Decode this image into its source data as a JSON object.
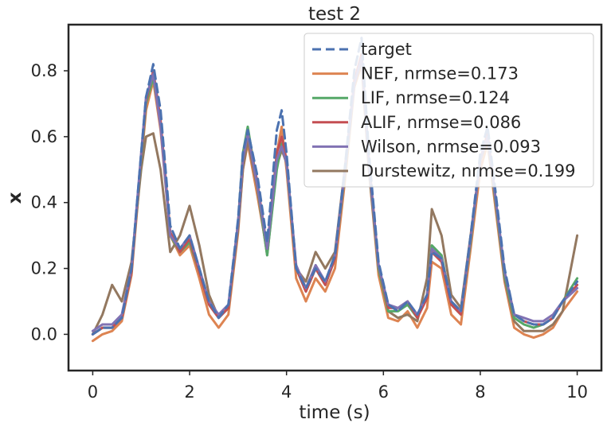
{
  "chart_data": {
    "type": "line",
    "title": "test 2",
    "xlabel": "time (s)",
    "ylabel": "x",
    "xlim": [
      -0.5,
      10.5
    ],
    "ylim": [
      -0.11,
      0.94
    ],
    "x_ticks": [
      0,
      2,
      4,
      6,
      8,
      10
    ],
    "y_ticks": [
      0.0,
      0.2,
      0.4,
      0.6,
      0.8
    ],
    "x_tick_labels": [
      "0",
      "2",
      "4",
      "6",
      "8",
      "10"
    ],
    "y_tick_labels": [
      "0.0",
      "0.2",
      "0.4",
      "0.6",
      "0.8"
    ],
    "grid": false,
    "legend_position": "top-right",
    "series": [
      {
        "name": "target",
        "color": "#4c72b0",
        "style": "dashed",
        "x": [
          0,
          0.2,
          0.4,
          0.6,
          0.8,
          1.0,
          1.1,
          1.25,
          1.4,
          1.6,
          1.8,
          2.0,
          2.2,
          2.4,
          2.6,
          2.8,
          3.0,
          3.1,
          3.2,
          3.4,
          3.6,
          3.8,
          3.9,
          4.0,
          4.2,
          4.4,
          4.6,
          4.8,
          5.0,
          5.2,
          5.4,
          5.55,
          5.7,
          5.9,
          6.1,
          6.3,
          6.5,
          6.7,
          6.9,
          7.0,
          7.2,
          7.4,
          7.6,
          7.8,
          8.0,
          8.15,
          8.3,
          8.5,
          8.7,
          8.9,
          9.1,
          9.3,
          9.5,
          9.7,
          10.0
        ],
        "values": [
          0.0,
          0.02,
          0.02,
          0.05,
          0.2,
          0.55,
          0.72,
          0.82,
          0.68,
          0.33,
          0.26,
          0.3,
          0.2,
          0.1,
          0.05,
          0.09,
          0.35,
          0.55,
          0.62,
          0.48,
          0.28,
          0.62,
          0.68,
          0.55,
          0.2,
          0.14,
          0.2,
          0.16,
          0.24,
          0.5,
          0.8,
          0.9,
          0.55,
          0.22,
          0.09,
          0.07,
          0.1,
          0.06,
          0.12,
          0.25,
          0.23,
          0.1,
          0.07,
          0.3,
          0.55,
          0.63,
          0.45,
          0.2,
          0.06,
          0.04,
          0.03,
          0.03,
          0.05,
          0.1,
          0.16
        ]
      },
      {
        "name": "NEF, nrmse=0.173",
        "color": "#dd8452",
        "style": "solid",
        "x": [
          0,
          0.2,
          0.4,
          0.6,
          0.8,
          1.0,
          1.1,
          1.25,
          1.4,
          1.6,
          1.8,
          2.0,
          2.2,
          2.4,
          2.6,
          2.8,
          3.0,
          3.1,
          3.2,
          3.4,
          3.6,
          3.8,
          3.9,
          4.0,
          4.2,
          4.4,
          4.6,
          4.8,
          5.0,
          5.2,
          5.4,
          5.55,
          5.7,
          5.9,
          6.1,
          6.3,
          6.5,
          6.7,
          6.9,
          7.0,
          7.2,
          7.4,
          7.6,
          7.8,
          8.0,
          8.15,
          8.3,
          8.5,
          8.7,
          8.9,
          9.1,
          9.3,
          9.5,
          9.7,
          10.0
        ],
        "values": [
          -0.02,
          0.0,
          0.01,
          0.04,
          0.18,
          0.52,
          0.68,
          0.77,
          0.62,
          0.3,
          0.24,
          0.27,
          0.17,
          0.06,
          0.02,
          0.06,
          0.31,
          0.5,
          0.58,
          0.42,
          0.25,
          0.55,
          0.63,
          0.5,
          0.17,
          0.1,
          0.17,
          0.13,
          0.2,
          0.46,
          0.75,
          0.82,
          0.5,
          0.18,
          0.05,
          0.04,
          0.07,
          0.02,
          0.08,
          0.22,
          0.2,
          0.06,
          0.03,
          0.26,
          0.5,
          0.58,
          0.4,
          0.16,
          0.02,
          0.0,
          -0.01,
          0.0,
          0.02,
          0.07,
          0.13
        ]
      },
      {
        "name": "LIF, nrmse=0.124",
        "color": "#55a868",
        "style": "solid",
        "x": [
          0,
          0.2,
          0.4,
          0.6,
          0.8,
          1.0,
          1.1,
          1.25,
          1.4,
          1.6,
          1.8,
          2.0,
          2.2,
          2.4,
          2.6,
          2.8,
          3.0,
          3.1,
          3.2,
          3.4,
          3.6,
          3.8,
          3.9,
          4.0,
          4.2,
          4.4,
          4.6,
          4.8,
          5.0,
          5.2,
          5.4,
          5.55,
          5.7,
          5.9,
          6.1,
          6.3,
          6.5,
          6.7,
          6.9,
          7.0,
          7.2,
          7.4,
          7.6,
          7.8,
          8.0,
          8.15,
          8.3,
          8.5,
          8.7,
          8.9,
          9.1,
          9.3,
          9.5,
          9.7,
          10.0
        ],
        "values": [
          0.0,
          0.02,
          0.02,
          0.05,
          0.19,
          0.53,
          0.7,
          0.78,
          0.64,
          0.3,
          0.25,
          0.28,
          0.19,
          0.09,
          0.05,
          0.08,
          0.34,
          0.55,
          0.63,
          0.45,
          0.24,
          0.5,
          0.58,
          0.52,
          0.2,
          0.13,
          0.2,
          0.15,
          0.23,
          0.48,
          0.76,
          0.84,
          0.52,
          0.2,
          0.07,
          0.07,
          0.09,
          0.05,
          0.12,
          0.27,
          0.24,
          0.09,
          0.06,
          0.28,
          0.53,
          0.6,
          0.42,
          0.18,
          0.05,
          0.03,
          0.02,
          0.03,
          0.05,
          0.1,
          0.17
        ]
      },
      {
        "name": "ALIF, nrmse=0.086",
        "color": "#c44e52",
        "style": "solid",
        "x": [
          0,
          0.2,
          0.4,
          0.6,
          0.8,
          1.0,
          1.1,
          1.25,
          1.4,
          1.6,
          1.8,
          2.0,
          2.2,
          2.4,
          2.6,
          2.8,
          3.0,
          3.1,
          3.2,
          3.4,
          3.6,
          3.8,
          3.9,
          4.0,
          4.2,
          4.4,
          4.6,
          4.8,
          5.0,
          5.2,
          5.4,
          5.55,
          5.7,
          5.9,
          6.1,
          6.3,
          6.5,
          6.7,
          6.9,
          7.0,
          7.2,
          7.4,
          7.6,
          7.8,
          8.0,
          8.15,
          8.3,
          8.5,
          8.7,
          8.9,
          9.1,
          9.3,
          9.5,
          9.7,
          10.0
        ],
        "values": [
          0.0,
          0.02,
          0.02,
          0.05,
          0.19,
          0.54,
          0.71,
          0.8,
          0.65,
          0.31,
          0.25,
          0.29,
          0.19,
          0.09,
          0.05,
          0.08,
          0.34,
          0.53,
          0.61,
          0.46,
          0.26,
          0.55,
          0.6,
          0.53,
          0.2,
          0.13,
          0.2,
          0.15,
          0.23,
          0.49,
          0.77,
          0.85,
          0.53,
          0.21,
          0.08,
          0.08,
          0.1,
          0.05,
          0.11,
          0.25,
          0.22,
          0.09,
          0.06,
          0.29,
          0.53,
          0.61,
          0.43,
          0.19,
          0.06,
          0.04,
          0.03,
          0.03,
          0.05,
          0.1,
          0.15
        ]
      },
      {
        "name": "Wilson, nrmse=0.093",
        "color": "#8172b3",
        "style": "solid",
        "x": [
          0,
          0.2,
          0.4,
          0.6,
          0.8,
          1.0,
          1.1,
          1.25,
          1.4,
          1.6,
          1.8,
          2.0,
          2.2,
          2.4,
          2.6,
          2.8,
          3.0,
          3.1,
          3.2,
          3.4,
          3.6,
          3.8,
          3.9,
          4.0,
          4.2,
          4.4,
          4.6,
          4.8,
          5.0,
          5.2,
          5.4,
          5.55,
          5.7,
          5.9,
          6.1,
          6.3,
          6.5,
          6.7,
          6.9,
          7.0,
          7.2,
          7.4,
          7.6,
          7.8,
          8.0,
          8.15,
          8.3,
          8.5,
          8.7,
          8.9,
          9.1,
          9.3,
          9.5,
          9.7,
          10.0
        ],
        "values": [
          0.01,
          0.03,
          0.03,
          0.06,
          0.2,
          0.55,
          0.72,
          0.79,
          0.63,
          0.3,
          0.26,
          0.3,
          0.2,
          0.1,
          0.06,
          0.09,
          0.34,
          0.53,
          0.61,
          0.45,
          0.26,
          0.53,
          0.57,
          0.52,
          0.21,
          0.14,
          0.21,
          0.16,
          0.24,
          0.49,
          0.76,
          0.84,
          0.52,
          0.21,
          0.09,
          0.08,
          0.1,
          0.06,
          0.12,
          0.26,
          0.23,
          0.1,
          0.07,
          0.29,
          0.53,
          0.6,
          0.43,
          0.19,
          0.06,
          0.05,
          0.04,
          0.04,
          0.06,
          0.1,
          0.14
        ]
      },
      {
        "name": "Durstewitz, nrmse=0.199",
        "color": "#937860",
        "style": "solid",
        "x": [
          0,
          0.2,
          0.4,
          0.6,
          0.8,
          1.0,
          1.1,
          1.25,
          1.4,
          1.6,
          1.8,
          2.0,
          2.2,
          2.4,
          2.6,
          2.8,
          3.0,
          3.1,
          3.2,
          3.4,
          3.6,
          3.8,
          3.9,
          4.0,
          4.2,
          4.4,
          4.6,
          4.8,
          5.0,
          5.2,
          5.4,
          5.55,
          5.7,
          5.9,
          6.1,
          6.3,
          6.5,
          6.7,
          6.9,
          7.0,
          7.2,
          7.4,
          7.6,
          7.8,
          8.0,
          8.15,
          8.3,
          8.5,
          8.7,
          8.9,
          9.1,
          9.3,
          9.5,
          9.7,
          10.0
        ],
        "values": [
          0.0,
          0.06,
          0.15,
          0.1,
          0.22,
          0.5,
          0.6,
          0.61,
          0.5,
          0.25,
          0.3,
          0.39,
          0.27,
          0.12,
          0.05,
          0.08,
          0.32,
          0.5,
          0.59,
          0.44,
          0.24,
          0.51,
          0.56,
          0.52,
          0.2,
          0.16,
          0.25,
          0.2,
          0.25,
          0.5,
          0.76,
          0.83,
          0.5,
          0.2,
          0.07,
          0.05,
          0.06,
          0.04,
          0.17,
          0.38,
          0.3,
          0.12,
          0.08,
          0.3,
          0.53,
          0.59,
          0.42,
          0.17,
          0.04,
          0.01,
          0.01,
          0.01,
          0.03,
          0.07,
          0.3
        ]
      }
    ]
  }
}
